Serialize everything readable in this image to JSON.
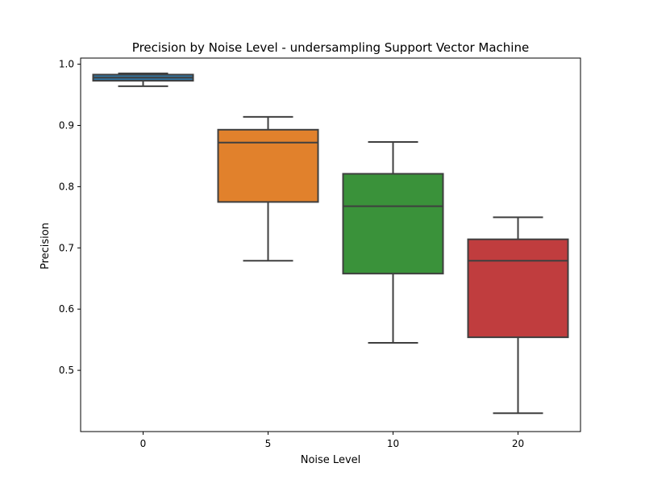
{
  "chart_data": {
    "type": "box",
    "title": "Precision by Noise Level - undersampling Support Vector Machine",
    "xlabel": "Noise Level",
    "ylabel": "Precision",
    "ylim": [
      0.4,
      1.01
    ],
    "yticks": [
      0.5,
      0.6,
      0.7,
      0.8,
      0.9,
      1.0
    ],
    "ytick_labels": [
      "0.5",
      "0.6",
      "0.7",
      "0.8",
      "0.9",
      "1.0"
    ],
    "grid": false,
    "categories": [
      "0",
      "5",
      "10",
      "20"
    ],
    "colors": [
      "#3274a1",
      "#e1812c",
      "#3a923a",
      "#c03d3e"
    ],
    "boxes": [
      {
        "category": "0",
        "whisker_low": 0.964,
        "q1": 0.973,
        "median": 0.978,
        "q3": 0.983,
        "whisker_high": 0.985
      },
      {
        "category": "5",
        "whisker_low": 0.679,
        "q1": 0.775,
        "median": 0.872,
        "q3": 0.893,
        "whisker_high": 0.914
      },
      {
        "category": "10",
        "whisker_low": 0.545,
        "q1": 0.658,
        "median": 0.768,
        "q3": 0.821,
        "whisker_high": 0.873
      },
      {
        "category": "20",
        "whisker_low": 0.43,
        "q1": 0.554,
        "median": 0.679,
        "q3": 0.714,
        "whisker_high": 0.75
      }
    ]
  }
}
